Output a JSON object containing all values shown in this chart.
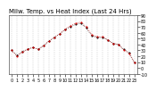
{
  "title": "Milw. Temp. vs Heat Index (Last 24 Hrs)",
  "background_color": "#ffffff",
  "plot_background": "#ffffff",
  "grid_color": "#888888",
  "hours": [
    0,
    1,
    2,
    3,
    4,
    5,
    6,
    7,
    8,
    9,
    10,
    11,
    12,
    13,
    14,
    15,
    16,
    17,
    18,
    19,
    20,
    21,
    22,
    23
  ],
  "temp": [
    30,
    22,
    28,
    32,
    35,
    32,
    38,
    46,
    52,
    58,
    65,
    70,
    74,
    76,
    68,
    55,
    52,
    52,
    48,
    42,
    40,
    32,
    26,
    10
  ],
  "heat_index": [
    30,
    20,
    27,
    32,
    35,
    32,
    38,
    46,
    52,
    58,
    66,
    72,
    76,
    78,
    70,
    57,
    53,
    53,
    48,
    42,
    40,
    31,
    25,
    9
  ],
  "temp_color": "#000000",
  "heat_color": "#cc0000",
  "ylim_min": -10,
  "ylim_max": 90,
  "ytick_values": [
    -10,
    0,
    10,
    20,
    30,
    40,
    50,
    60,
    70,
    80,
    90
  ],
  "ytick_labels": [
    "-10",
    "0",
    "10",
    "20",
    "30",
    "40",
    "50",
    "60",
    "70",
    "80",
    "90"
  ],
  "title_fontsize": 5.0,
  "tick_fontsize": 3.5,
  "marker_size": 1.5,
  "linewidth": 0.5
}
